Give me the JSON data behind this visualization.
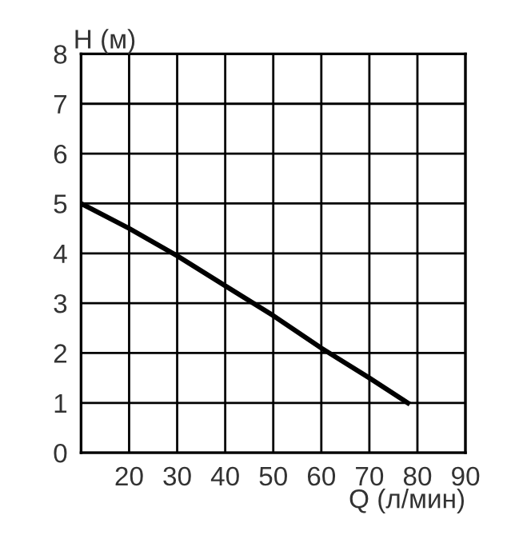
{
  "chart_data": {
    "type": "line",
    "xlabel": "Q (л/мин)",
    "ylabel": "H (м)",
    "x": [
      10,
      20,
      30,
      40,
      50,
      60,
      70,
      78
    ],
    "series": [
      {
        "color": "#000000",
        "values": [
          5,
          4.5,
          3.95,
          3.35,
          2.75,
          2.1,
          1.5,
          1.0
        ]
      }
    ],
    "xlim": [
      10,
      90
    ],
    "xticks": [
      {
        "value": 10,
        "label": null
      },
      20,
      30,
      40,
      50,
      60,
      70,
      80,
      90
    ],
    "ylim": [
      0,
      8
    ],
    "yticks": [
      0,
      1,
      2,
      3,
      4,
      5,
      6,
      7,
      8
    ],
    "grid": true,
    "marker": "none",
    "line_style": "solid"
  }
}
